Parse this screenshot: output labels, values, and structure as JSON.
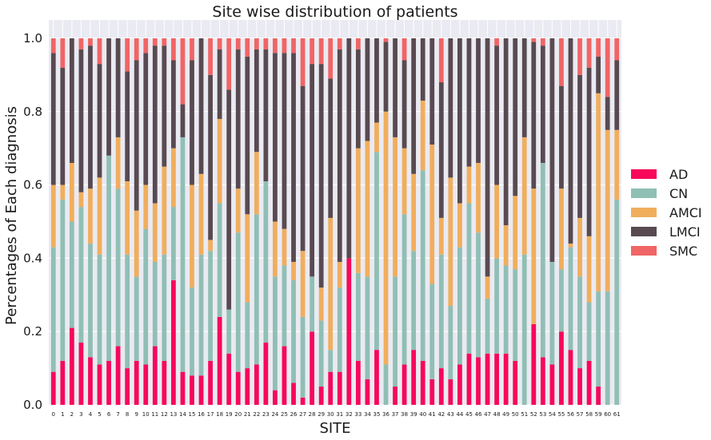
{
  "chart_data": {
    "type": "bar",
    "stacked": true,
    "normalized": true,
    "title": "Site wise distribution of patients",
    "xlabel": "SITE",
    "ylabel": "Percentages of Each diagnosis",
    "ylim": [
      0,
      1.05
    ],
    "yticks": [
      "0.0",
      "0.2",
      "0.4",
      "0.6",
      "0.8",
      "1.0"
    ],
    "grid": true,
    "legend_position": "right",
    "categories": [
      "0",
      "1",
      "2",
      "3",
      "4",
      "5",
      "6",
      "7",
      "8",
      "9",
      "10",
      "11",
      "12",
      "13",
      "14",
      "15",
      "16",
      "17",
      "18",
      "19",
      "20",
      "21",
      "22",
      "23",
      "24",
      "25",
      "26",
      "27",
      "28",
      "29",
      "30",
      "31",
      "32",
      "33",
      "34",
      "35",
      "36",
      "37",
      "38",
      "39",
      "40",
      "41",
      "42",
      "43",
      "44",
      "45",
      "46",
      "47",
      "48",
      "49",
      "50",
      "51",
      "52",
      "53",
      "54",
      "55",
      "56",
      "57",
      "58",
      "59",
      "60",
      "61"
    ],
    "series": [
      {
        "name": "AD",
        "color": "#f7085a",
        "values": [
          0.09,
          0.12,
          0.21,
          0.17,
          0.13,
          0.11,
          0.12,
          0.16,
          0.1,
          0.12,
          0.11,
          0.16,
          0.12,
          0.34,
          0.09,
          0.08,
          0.08,
          0.12,
          0.24,
          0.14,
          0.09,
          0.1,
          0.11,
          0.17,
          0.04,
          0.16,
          0.06,
          0.02,
          0.2,
          0.05,
          0.09,
          0.09,
          0.4,
          0.12,
          0.07,
          0.15,
          0.0,
          0.05,
          0.11,
          0.15,
          0.12,
          0.07,
          0.1,
          0.07,
          0.11,
          0.14,
          0.13,
          0.14,
          0.14,
          0.14,
          0.12,
          0.0,
          0.22,
          0.13,
          0.11,
          0.2,
          0.15,
          0.1,
          0.12,
          0.05,
          0.0,
          0.0
        ]
      },
      {
        "name": "CN",
        "color": "#90bfb4",
        "values": [
          0.34,
          0.44,
          0.29,
          0.37,
          0.31,
          0.3,
          0.56,
          0.43,
          0.31,
          0.23,
          0.37,
          0.23,
          0.29,
          0.2,
          0.64,
          0.24,
          0.33,
          0.3,
          0.31,
          0.12,
          0.38,
          0.18,
          0.41,
          0.44,
          0.31,
          0.22,
          0.28,
          0.22,
          0.15,
          0.18,
          0.06,
          0.23,
          0.0,
          0.24,
          0.28,
          0.54,
          0.11,
          0.3,
          0.41,
          0.27,
          0.52,
          0.26,
          0.31,
          0.2,
          0.32,
          0.41,
          0.34,
          0.15,
          0.26,
          0.24,
          0.25,
          0.41,
          0.0,
          0.53,
          0.28,
          0.17,
          0.28,
          0.25,
          0.16,
          0.26,
          0.31,
          0.56
        ]
      },
      {
        "name": "AMCI",
        "color": "#f0ae5d",
        "values": [
          0.17,
          0.04,
          0.16,
          0.04,
          0.15,
          0.21,
          0.0,
          0.14,
          0.2,
          0.18,
          0.12,
          0.16,
          0.24,
          0.16,
          0.0,
          0.28,
          0.22,
          0.03,
          0.23,
          0.0,
          0.12,
          0.24,
          0.17,
          0.0,
          0.15,
          0.1,
          0.05,
          0.18,
          0.0,
          0.09,
          0.36,
          0.07,
          0.0,
          0.34,
          0.37,
          0.08,
          0.69,
          0.38,
          0.18,
          0.21,
          0.19,
          0.38,
          0.1,
          0.35,
          0.12,
          0.1,
          0.19,
          0.06,
          0.2,
          0.11,
          0.2,
          0.32,
          0.37,
          0.0,
          0.0,
          0.22,
          0.01,
          0.16,
          0.18,
          0.54,
          0.44,
          0.19
        ]
      },
      {
        "name": "LMCI",
        "color": "#584a50",
        "values": [
          0.36,
          0.32,
          0.34,
          0.39,
          0.39,
          0.31,
          0.32,
          0.27,
          0.3,
          0.41,
          0.36,
          0.43,
          0.33,
          0.24,
          0.09,
          0.34,
          0.37,
          0.45,
          0.19,
          0.6,
          0.38,
          0.43,
          0.28,
          0.36,
          0.46,
          0.48,
          0.57,
          0.45,
          0.58,
          0.61,
          0.38,
          0.58,
          0.6,
          0.27,
          0.28,
          0.23,
          0.19,
          0.27,
          0.24,
          0.37,
          0.17,
          0.29,
          0.37,
          0.38,
          0.45,
          0.35,
          0.34,
          0.65,
          0.38,
          0.51,
          0.43,
          0.27,
          0.4,
          0.32,
          0.61,
          0.28,
          0.56,
          0.39,
          0.46,
          0.1,
          0.09,
          0.19
        ]
      },
      {
        "name": "SMC",
        "color": "#f06565",
        "values": [
          0.04,
          0.08,
          0.0,
          0.03,
          0.02,
          0.07,
          0.0,
          0.0,
          0.09,
          0.06,
          0.04,
          0.02,
          0.02,
          0.06,
          0.18,
          0.06,
          0.0,
          0.1,
          0.03,
          0.14,
          0.03,
          0.05,
          0.03,
          0.03,
          0.04,
          0.04,
          0.04,
          0.13,
          0.07,
          0.07,
          0.11,
          0.03,
          0.0,
          0.03,
          0.0,
          0.0,
          0.01,
          0.0,
          0.06,
          0.0,
          0.0,
          0.0,
          0.12,
          0.0,
          0.0,
          0.0,
          0.0,
          0.0,
          0.02,
          0.0,
          0.0,
          0.0,
          0.01,
          0.02,
          0.0,
          0.13,
          0.0,
          0.1,
          0.08,
          0.05,
          0.16,
          0.06
        ]
      }
    ]
  }
}
